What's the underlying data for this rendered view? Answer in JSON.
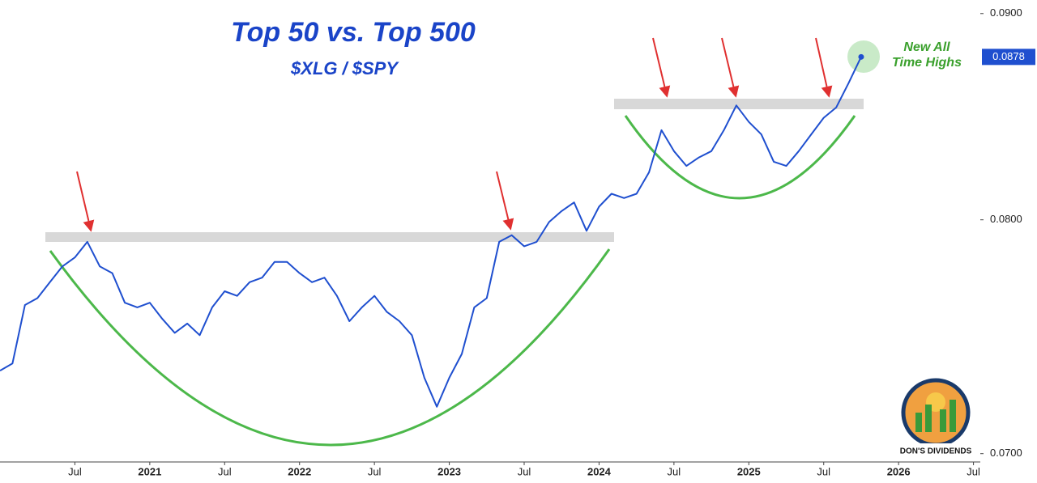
{
  "chart_data": {
    "type": "line",
    "title": "Top 50 vs. Top 500",
    "subtitle": "$XLG / $SPY",
    "annotation": [
      "New All",
      "Time Highs"
    ],
    "logo_text": "DON'S DIVIDENDS",
    "log_scale": true,
    "x": [
      "2020-01",
      "2020-02",
      "2020-03",
      "2020-04",
      "2020-05",
      "2020-06",
      "2020-07",
      "2020-08",
      "2020-09",
      "2020-10",
      "2020-11",
      "2020-12",
      "2021-01",
      "2021-02",
      "2021-03",
      "2021-04",
      "2021-05",
      "2021-06",
      "2021-07",
      "2021-08",
      "2021-09",
      "2021-10",
      "2021-11",
      "2021-12",
      "2022-01",
      "2022-02",
      "2022-03",
      "2022-04",
      "2022-05",
      "2022-06",
      "2022-07",
      "2022-08",
      "2022-09",
      "2022-10",
      "2022-11",
      "2022-12",
      "2023-01",
      "2023-02",
      "2023-03",
      "2023-04",
      "2023-05",
      "2023-06",
      "2023-07",
      "2023-08",
      "2023-09",
      "2023-10",
      "2023-11",
      "2023-12",
      "2024-01",
      "2024-02",
      "2024-03",
      "2024-04",
      "2024-05",
      "2024-06",
      "2024-07",
      "2024-08",
      "2024-09",
      "2024-10",
      "2024-11",
      "2024-12",
      "2025-01",
      "2025-02",
      "2025-03",
      "2025-04",
      "2025-05",
      "2025-06",
      "2025-07",
      "2025-08",
      "2025-09",
      "2025-10"
    ],
    "series": [
      {
        "name": "$XLG / $SPY",
        "color": "#1f4fcf",
        "values": [
          0.0734,
          0.0737,
          0.0762,
          0.0765,
          0.0772,
          0.0779,
          0.0783,
          0.079,
          0.0779,
          0.0776,
          0.0763,
          0.0761,
          0.0763,
          0.0756,
          0.075,
          0.0754,
          0.0749,
          0.0761,
          0.0768,
          0.0766,
          0.0772,
          0.0774,
          0.0781,
          0.0781,
          0.0776,
          0.0772,
          0.0774,
          0.0766,
          0.0755,
          0.0761,
          0.0766,
          0.0759,
          0.0755,
          0.0749,
          0.0731,
          0.0719,
          0.0731,
          0.0741,
          0.0761,
          0.0765,
          0.079,
          0.0793,
          0.0788,
          0.079,
          0.0799,
          0.0804,
          0.0808,
          0.0795,
          0.0806,
          0.0812,
          0.081,
          0.0812,
          0.0822,
          0.0842,
          0.0832,
          0.0825,
          0.0829,
          0.0832,
          0.0842,
          0.0854,
          0.0846,
          0.084,
          0.0827,
          0.0825,
          0.0832,
          0.084,
          0.0848,
          0.0853,
          0.0865,
          0.0878
        ]
      }
    ],
    "xlim": [
      "2020-01",
      "2026-08"
    ],
    "xticks": [
      {
        "value": "2020-07",
        "label": "Jul"
      },
      {
        "value": "2021-01",
        "label": "2021"
      },
      {
        "value": "2021-07",
        "label": "Jul"
      },
      {
        "value": "2022-01",
        "label": "2022"
      },
      {
        "value": "2022-07",
        "label": "Jul"
      },
      {
        "value": "2023-01",
        "label": "2023"
      },
      {
        "value": "2023-07",
        "label": "Jul"
      },
      {
        "value": "2024-01",
        "label": "2024"
      },
      {
        "value": "2024-07",
        "label": "Jul"
      },
      {
        "value": "2025-01",
        "label": "2025"
      },
      {
        "value": "2025-07",
        "label": "Jul"
      },
      {
        "value": "2026-01",
        "label": "2026"
      },
      {
        "value": "2026-07",
        "label": "Jul"
      }
    ],
    "ylim": [
      0.0697,
      0.0907
    ],
    "yticks": [
      {
        "value": 0.07,
        "label": "0.0700"
      },
      {
        "value": 0.08,
        "label": "0.0800"
      },
      {
        "value": 0.09,
        "label": "0.0900"
      }
    ]
  }
}
